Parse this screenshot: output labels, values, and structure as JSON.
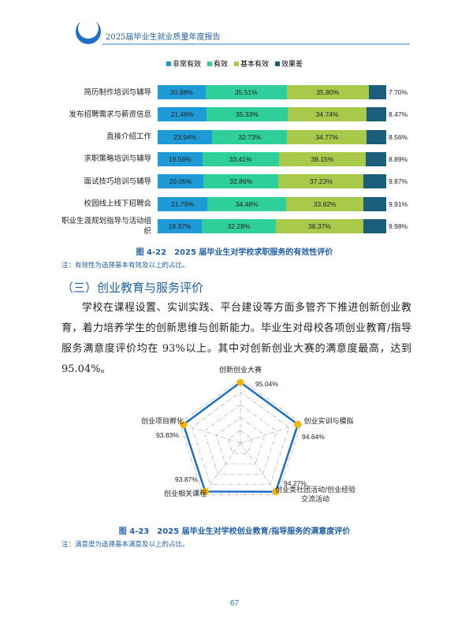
{
  "header": {
    "title": "2025届毕业生就业质量年度报告"
  },
  "chart_data": [
    {
      "type": "bar",
      "orientation": "horizontal",
      "stacked": true,
      "legend": "top",
      "title": "图 4-22　2025 届毕业生对学校求职服务的有效性评价",
      "note": "注：有效性为选择基本有效及以上的占比。",
      "categories": [
        "简历制作培训与辅导",
        "发布招聘需求与薪资信息",
        "直接介绍工作",
        "求职策略培训与辅导",
        "面试技巧培训与辅导",
        "校园线上线下招聘会",
        "职业生涯规划指导与活动组织"
      ],
      "xlim": [
        0,
        100
      ],
      "series": [
        {
          "name": "非常有效",
          "color": "#1e9ad6",
          "values": [
            20.98,
            21.46,
            23.94,
            19.56,
            20.05,
            21.79,
            19.37
          ],
          "value_labels": [
            "20.98%",
            "21.46%",
            "23.94%",
            "19.56%",
            "20.05%",
            "21.79%",
            "19.37%"
          ]
        },
        {
          "name": "有效",
          "color": "#2fcf9c",
          "values": [
            35.51,
            35.33,
            32.73,
            33.41,
            32.86,
            34.48,
            32.28
          ],
          "value_labels": [
            "35.51%",
            "35.33%",
            "32.73%",
            "33.41%",
            "32.86%",
            "34.48%",
            "32.28%"
          ]
        },
        {
          "name": "基本有效",
          "color": "#a9c94b",
          "values": [
            35.8,
            34.74,
            34.77,
            38.15,
            37.23,
            33.82,
            38.37
          ],
          "value_labels": [
            "35.80%",
            "34.74%",
            "34.77%",
            "38.15%",
            "37.23%",
            "33.82%",
            "38.37%"
          ]
        },
        {
          "name": "效果差",
          "color": "#1b5e7c",
          "values": [
            7.7,
            8.47,
            8.56,
            8.89,
            9.87,
            9.91,
            9.98
          ],
          "value_labels": [
            "7.70%",
            "8.47%",
            "8.56%",
            "8.89%",
            "9.87%",
            "9.91%",
            "9.98%"
          ]
        }
      ]
    },
    {
      "type": "radar",
      "title": "图 4-23　2025 届毕业生对学校创业教育/指导服务的满意度评价",
      "note": "注：满意度为选择基本满意及以上的占比。",
      "categories": [
        "创新创业大赛",
        "创业实训与模拟",
        "创业类社团活动/创业经验交流活动",
        "创业相关课程",
        "创业项目孵化"
      ],
      "values": [
        95.04,
        94.64,
        94.27,
        93.87,
        93.83
      ],
      "value_labels": [
        "95.04%",
        "94.64%",
        "94.27%",
        "93.87%",
        "93.83%"
      ],
      "rlim": [
        0,
        100
      ],
      "color": "#1f6fc6",
      "marker_color": "#f5b400"
    }
  ],
  "section": {
    "heading": "（三）创业教育与服务评价",
    "paragraph": "学校在课程设置、实训实践、平台建设等方面多管齐下推进创新创业教育，着力培养学生的创新思维与创新能力。毕业生对母校各项创业教育/指导服务满意度评价均在 93%以上。其中对创新创业大赛的满意度最高，达到 95.04%。"
  },
  "page_number": 67
}
